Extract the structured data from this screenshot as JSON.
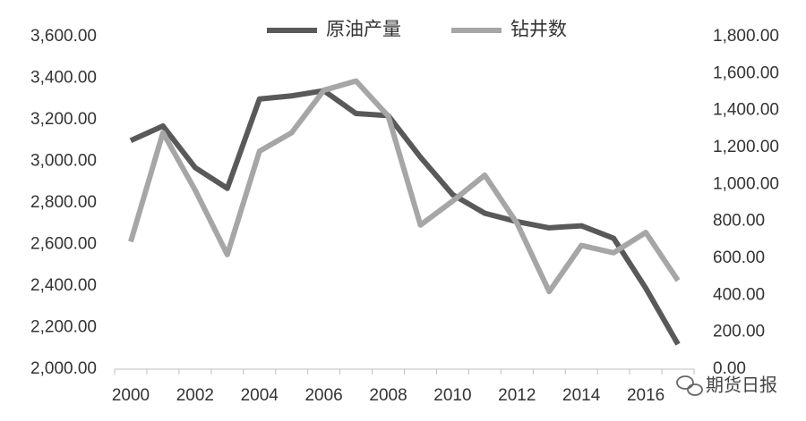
{
  "chart_data": {
    "type": "line",
    "categories": [
      "2000",
      null,
      "2002",
      null,
      "2004",
      null,
      "2006",
      null,
      "2008",
      null,
      "2010",
      null,
      "2012",
      null,
      "2014",
      null,
      "2016",
      null
    ],
    "series": [
      {
        "name": "原油产量",
        "color": "#595959",
        "values": [
          3100,
          3170,
          2970,
          2870,
          3300,
          3315,
          3340,
          3230,
          3220,
          3020,
          2840,
          2750,
          2710,
          2680,
          2690,
          2630,
          2390,
          2120
        ]
      },
      {
        "name": "钻井数",
        "color": "#a6a6a6",
        "axis": "y2",
        "values": [
          690,
          1280,
          970,
          620,
          1180,
          1280,
          1510,
          1560,
          1370,
          780,
          910,
          1050,
          790,
          420,
          670,
          630,
          740,
          480
        ]
      }
    ],
    "ylim": [
      2000,
      3600
    ],
    "yticks": [
      {
        "value": 2000,
        "label": "2,000.00"
      },
      {
        "value": 2200,
        "label": "2,200.00"
      },
      {
        "value": 2400,
        "label": "2,400.00"
      },
      {
        "value": 2600,
        "label": "2,600.00"
      },
      {
        "value": 2800,
        "label": "2,800.00"
      },
      {
        "value": 3000,
        "label": "3,000.00"
      },
      {
        "value": 3200,
        "label": "3,200.00"
      },
      {
        "value": 3400,
        "label": "3,400.00"
      },
      {
        "value": 3600,
        "label": "3,600.00"
      }
    ],
    "y2lim": [
      0,
      1800
    ],
    "y2ticks": [
      {
        "value": 0,
        "label": "0.00"
      },
      {
        "value": 200,
        "label": "200.00"
      },
      {
        "value": 400,
        "label": "400.00"
      },
      {
        "value": 600,
        "label": "600.00"
      },
      {
        "value": 800,
        "label": "800.00"
      },
      {
        "value": 1000,
        "label": "1,000.00"
      },
      {
        "value": 1200,
        "label": "1,200.00"
      },
      {
        "value": 1400,
        "label": "1,400.00"
      },
      {
        "value": 1600,
        "label": "1,600.00"
      },
      {
        "value": 1800,
        "label": "1,800.00"
      }
    ],
    "legend": "top",
    "watermark": "期货日报"
  }
}
